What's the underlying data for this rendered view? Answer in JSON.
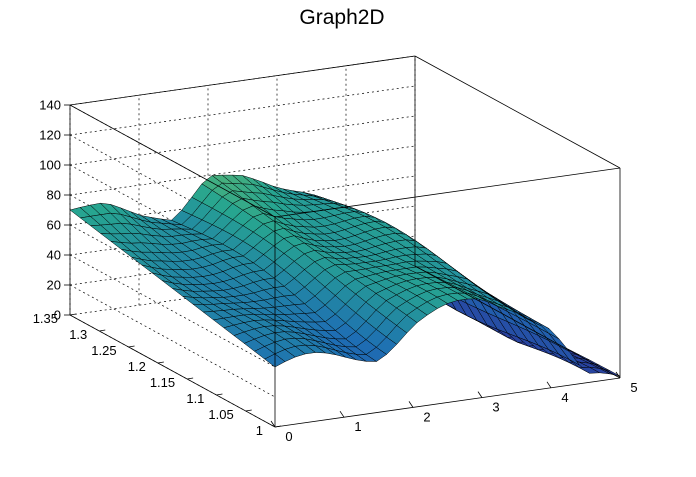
{
  "chart_data": {
    "type": "surface3d",
    "title": "Graph2D",
    "xlabel": "",
    "ylabel": "",
    "zlabel": "",
    "xlim": [
      0,
      5
    ],
    "ylim": [
      1,
      1.35
    ],
    "zlim": [
      0,
      140
    ],
    "x_ticks": [
      "0",
      "1",
      "2",
      "3",
      "4",
      "5"
    ],
    "y_ticks": [
      "1",
      "1.05",
      "1.1",
      "1.15",
      "1.2",
      "1.25",
      "1.3",
      "1.35"
    ],
    "z_ticks": [
      "0",
      "20",
      "40",
      "60",
      "80",
      "100",
      "120",
      "140"
    ],
    "grid": true,
    "colormap": "viridis-like (blue to green to yellow)",
    "colors": {
      "low": "#2a3e9e",
      "mid": "#27a590",
      "high": "#f6d53a",
      "frame": "#000000"
    },
    "surface_profile": {
      "x": [
        0,
        0.5,
        1.0,
        1.5,
        2.0,
        2.5,
        3.0,
        3.5,
        4.0,
        4.5,
        5.0
      ],
      "z_at_y_min": [
        40,
        40,
        40,
        40,
        55,
        60,
        65,
        60,
        40,
        0,
        0
      ],
      "z_at_y_max": [
        70,
        70,
        60,
        55,
        80,
        75,
        65,
        60,
        40,
        5,
        0
      ]
    }
  }
}
